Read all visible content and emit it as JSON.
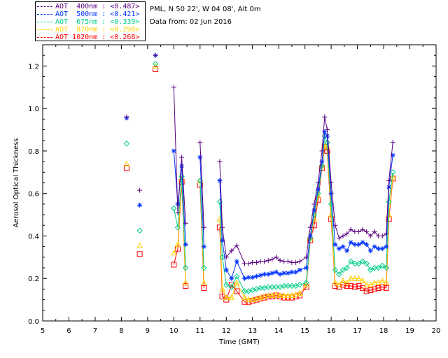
{
  "header": {
    "location": "PML, N 50 22', W 04 08', Alt 0m",
    "date": "Data from: 02 Jun 2016"
  },
  "legend": [
    {
      "label": "AOT  400nm : <0.487>",
      "color": "#5a0080"
    },
    {
      "label": "AOT  500nm : <0.421>",
      "color": "#0033ff"
    },
    {
      "label": "AOT  675nm : <0.339>",
      "color": "#00cc88"
    },
    {
      "label": "AOT  870nm : <0.290>",
      "color": "#ffd000"
    },
    {
      "label": "AOT 1020nm : <0.268>",
      "color": "#ff0000"
    }
  ],
  "chart_data": {
    "type": "scatter",
    "xlabel": "Time (GMT)",
    "ylabel": "Aerosol Optical Thickness",
    "xlim": [
      5,
      20
    ],
    "ylim": [
      0,
      1.3
    ],
    "xticks": [
      5,
      6,
      7,
      8,
      9,
      10,
      11,
      12,
      13,
      14,
      15,
      16,
      17,
      18,
      19,
      20
    ],
    "yticks": [
      0.0,
      0.2,
      0.4,
      0.6,
      0.8,
      1.0,
      1.2
    ],
    "ytick_labels": [
      "0.0",
      "0.2",
      "0.4",
      "0.6",
      "0.8",
      "1.0",
      "1.2"
    ],
    "x": [
      8.2,
      8.7,
      9.3,
      10.0,
      10.15,
      10.3,
      10.45,
      11.0,
      11.15,
      11.75,
      11.85,
      12.0,
      12.2,
      12.4,
      12.7,
      12.85,
      13.0,
      13.15,
      13.3,
      13.45,
      13.6,
      13.75,
      13.9,
      14.05,
      14.2,
      14.35,
      14.5,
      14.65,
      14.8,
      15.05,
      15.2,
      15.35,
      15.5,
      15.65,
      15.75,
      15.85,
      16.0,
      16.15,
      16.3,
      16.45,
      16.6,
      16.75,
      16.9,
      17.05,
      17.2,
      17.35,
      17.5,
      17.65,
      17.8,
      17.95,
      18.1,
      18.2,
      18.35
    ],
    "series": [
      {
        "name": "AOT 400nm",
        "marker": "plus",
        "values": [
          0.96,
          0.615,
          1.25,
          1.1,
          0.51,
          0.77,
          0.46,
          0.84,
          0.44,
          0.75,
          0.44,
          0.3,
          0.33,
          0.355,
          0.27,
          0.27,
          0.275,
          0.275,
          0.28,
          0.28,
          0.285,
          0.29,
          0.3,
          0.285,
          0.28,
          0.28,
          0.275,
          0.275,
          0.28,
          0.3,
          0.44,
          0.55,
          0.65,
          0.8,
          0.96,
          0.9,
          0.65,
          0.45,
          0.39,
          0.4,
          0.41,
          0.43,
          0.42,
          0.42,
          0.43,
          0.42,
          0.4,
          0.42,
          0.4,
          0.4,
          0.41,
          0.66,
          0.84
        ]
      },
      {
        "name": "AOT 500nm",
        "marker": "asterisk",
        "values": [
          0.955,
          0.545,
          1.25,
          0.8,
          0.55,
          0.73,
          0.36,
          0.77,
          0.35,
          0.66,
          0.38,
          0.24,
          0.2,
          0.28,
          0.2,
          0.205,
          0.205,
          0.21,
          0.215,
          0.22,
          0.22,
          0.225,
          0.23,
          0.22,
          0.225,
          0.225,
          0.23,
          0.23,
          0.24,
          0.25,
          0.4,
          0.52,
          0.62,
          0.75,
          0.89,
          0.87,
          0.6,
          0.36,
          0.34,
          0.35,
          0.33,
          0.37,
          0.36,
          0.36,
          0.37,
          0.36,
          0.33,
          0.35,
          0.34,
          0.34,
          0.35,
          0.63,
          0.78
        ]
      },
      {
        "name": "AOT 675nm",
        "marker": "diamond",
        "values": [
          0.835,
          0.425,
          1.21,
          0.53,
          0.44,
          0.68,
          0.25,
          0.66,
          0.25,
          0.56,
          0.3,
          0.17,
          0.16,
          0.21,
          0.14,
          0.14,
          0.145,
          0.15,
          0.155,
          0.155,
          0.16,
          0.16,
          0.16,
          0.16,
          0.165,
          0.165,
          0.165,
          0.165,
          0.17,
          0.18,
          0.39,
          0.5,
          0.6,
          0.73,
          0.87,
          0.84,
          0.55,
          0.24,
          0.22,
          0.24,
          0.25,
          0.28,
          0.27,
          0.27,
          0.28,
          0.27,
          0.24,
          0.25,
          0.25,
          0.26,
          0.25,
          0.56,
          0.7
        ]
      },
      {
        "name": "AOT 870nm",
        "marker": "triangle",
        "values": [
          0.74,
          0.355,
          1.2,
          0.32,
          0.36,
          0.67,
          0.18,
          0.66,
          0.18,
          0.48,
          0.15,
          0.11,
          0.11,
          0.18,
          0.11,
          0.1,
          0.1,
          0.105,
          0.11,
          0.115,
          0.12,
          0.12,
          0.125,
          0.12,
          0.12,
          0.12,
          0.12,
          0.125,
          0.13,
          0.17,
          0.39,
          0.48,
          0.59,
          0.73,
          0.83,
          0.82,
          0.5,
          0.18,
          0.17,
          0.19,
          0.18,
          0.2,
          0.2,
          0.2,
          0.19,
          0.17,
          0.17,
          0.18,
          0.18,
          0.19,
          0.18,
          0.5,
          0.68
        ]
      },
      {
        "name": "AOT 1020nm",
        "marker": "square",
        "values": [
          0.72,
          0.315,
          1.185,
          0.265,
          0.34,
          0.655,
          0.165,
          0.64,
          0.155,
          0.44,
          0.115,
          0.1,
          0.17,
          0.14,
          0.09,
          0.09,
          0.095,
          0.1,
          0.105,
          0.11,
          0.115,
          0.115,
          0.12,
          0.115,
          0.11,
          0.11,
          0.11,
          0.115,
          0.12,
          0.16,
          0.38,
          0.45,
          0.57,
          0.72,
          0.82,
          0.8,
          0.48,
          0.165,
          0.16,
          0.17,
          0.165,
          0.165,
          0.16,
          0.165,
          0.155,
          0.14,
          0.145,
          0.15,
          0.155,
          0.16,
          0.155,
          0.48,
          0.67
        ]
      }
    ]
  }
}
